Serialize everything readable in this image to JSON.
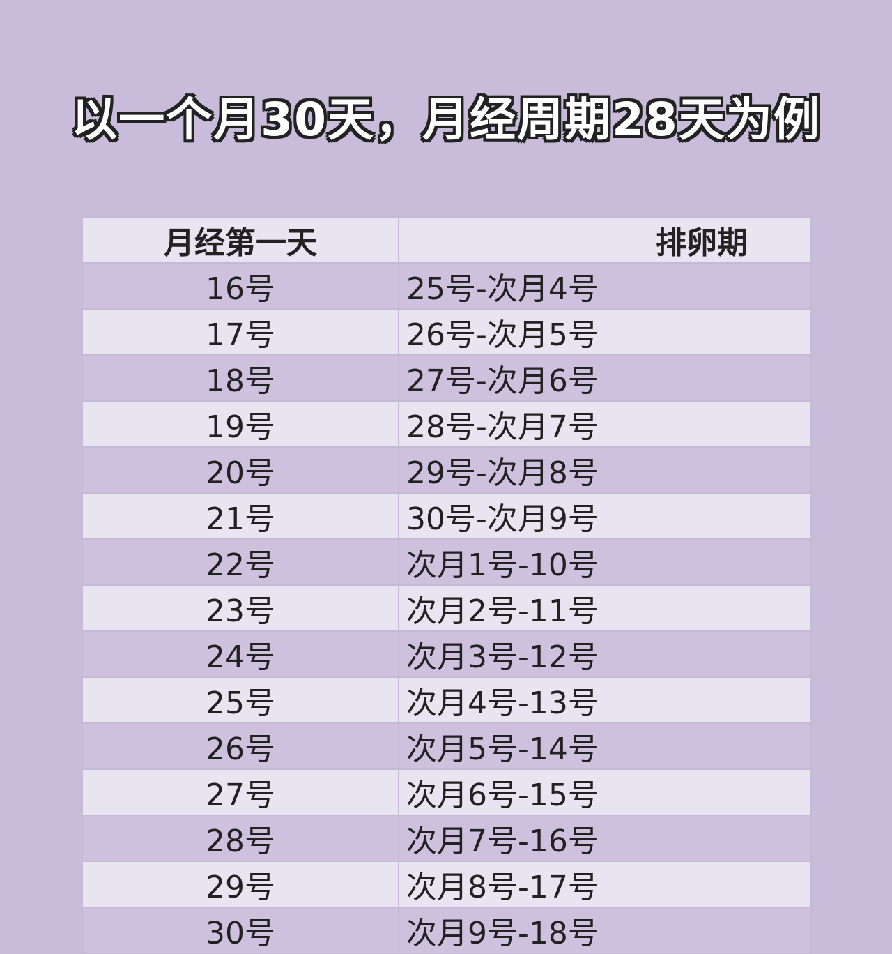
{
  "title": "以一个月30天，月经周期28天为例",
  "table": {
    "headers": [
      "月经第一天",
      "排卵期"
    ],
    "rows": [
      [
        "16号",
        "25号-次月4号"
      ],
      [
        "17号",
        "26号-次月5号"
      ],
      [
        "18号",
        "27号-次月6号"
      ],
      [
        "19号",
        "28号-次月7号"
      ],
      [
        "20号",
        "29号-次月8号"
      ],
      [
        "21号",
        "30号-次月9号"
      ],
      [
        "22号",
        "次月1号-10号"
      ],
      [
        "23号",
        "次月2号-11号"
      ],
      [
        "24号",
        "次月3号-12号"
      ],
      [
        "25号",
        "次月4号-13号"
      ],
      [
        "26号",
        "次月5号-14号"
      ],
      [
        "27号",
        "次月6号-15号"
      ],
      [
        "28号",
        "次月7号-16号"
      ],
      [
        "29号",
        "次月8号-17号"
      ],
      [
        "30号",
        "次月9号-18号"
      ]
    ]
  },
  "colors": {
    "background": "#c8bcda",
    "row_light": "#e8e4f0",
    "row_dark": "#cec1de"
  }
}
